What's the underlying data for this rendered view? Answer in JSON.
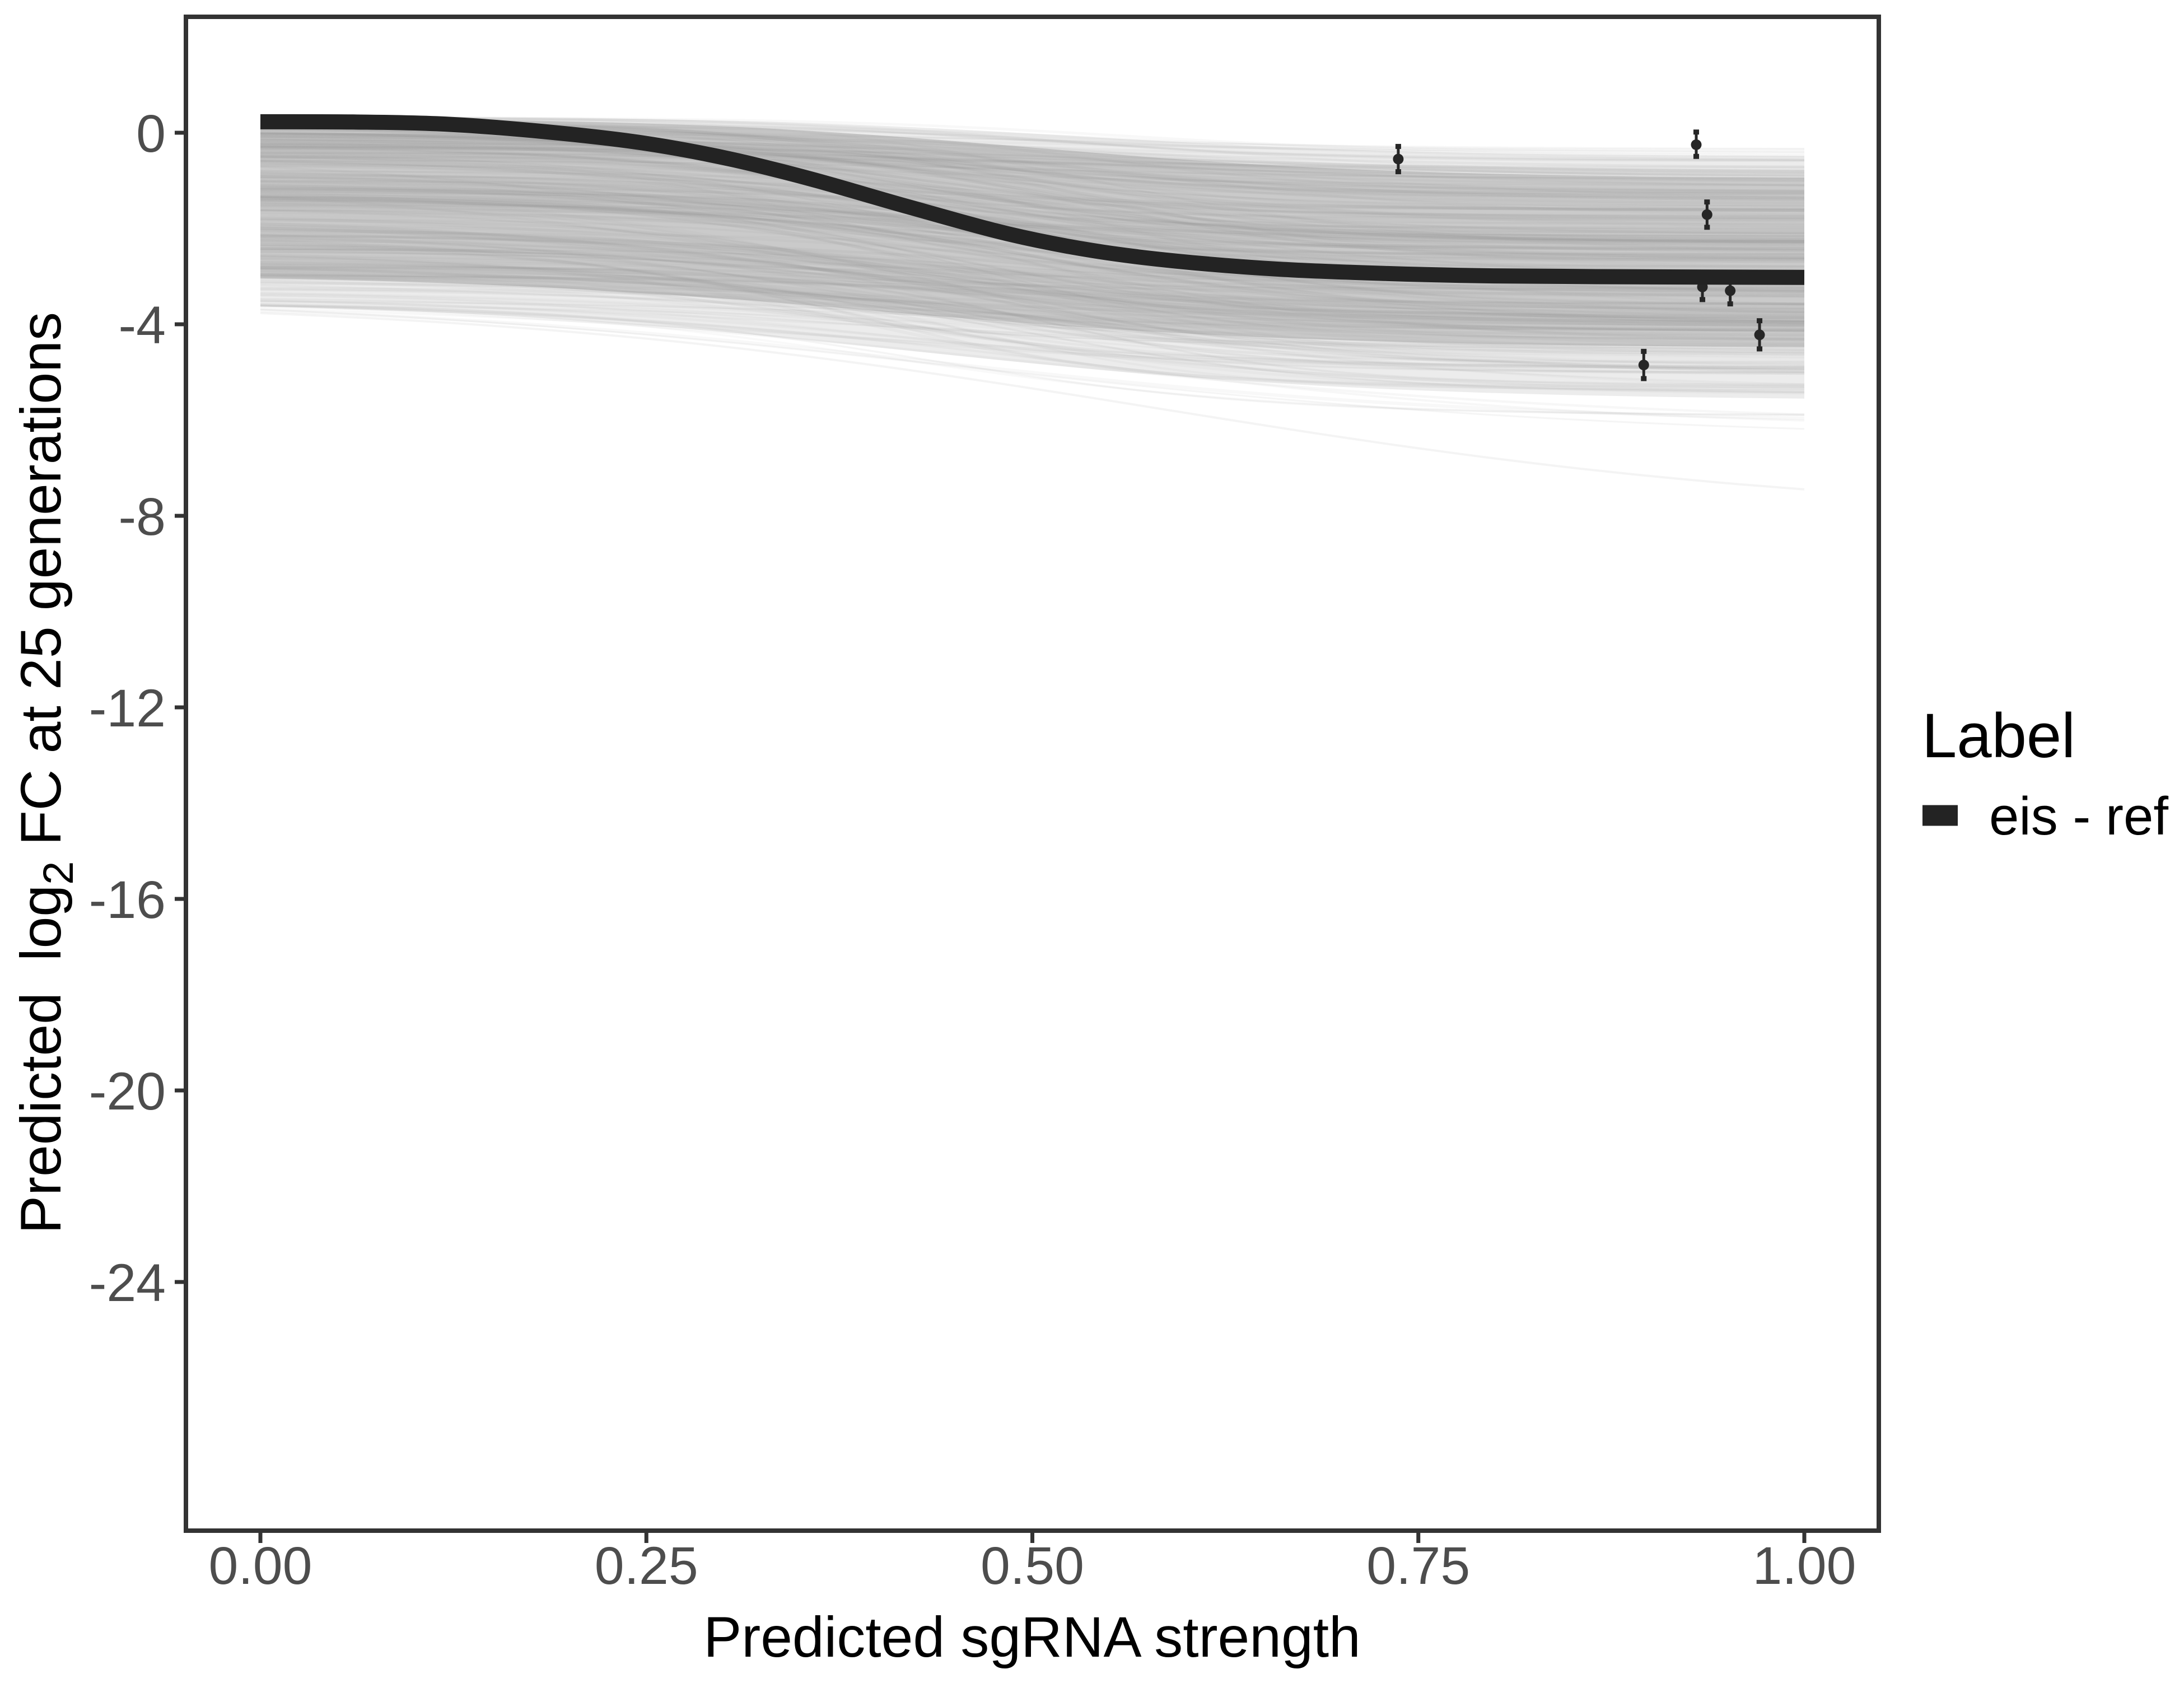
{
  "chart_data": {
    "type": "line",
    "title": "",
    "xlabel": "Predicted sgRNA strength",
    "ylabel": "Predicted log2 FC at 25 generations",
    "ylabel_parts": {
      "word1": "Predicted",
      "word2": "log",
      "sub": "2",
      "rest": "FC at 25 generations"
    },
    "xlim": [
      0,
      1
    ],
    "ylim_displayed": [
      2.4,
      -29.2
    ],
    "grid": false,
    "legend_position": "right",
    "xticks": [
      "0.00",
      "0.25",
      "0.50",
      "0.75",
      "1.00"
    ],
    "xtick_values": [
      0,
      0.25,
      0.5,
      0.75,
      1
    ],
    "yticks": [
      "0",
      "-4",
      "-8",
      "-12",
      "-16",
      "-20",
      "-24"
    ],
    "ytick_values": [
      0,
      -4,
      -8,
      -12,
      -16,
      -20,
      -24
    ],
    "legend": {
      "title": "Label",
      "entries": [
        {
          "label": "eis - ref",
          "type": "thick-line",
          "color": "#232323"
        }
      ]
    },
    "series": [
      {
        "name": "eis - ref",
        "type": "smooth-sigmoid-line",
        "color": "#232323",
        "stroke_width": 27,
        "points": [
          [
            0.0,
            0.23
          ],
          [
            0.06,
            0.225
          ],
          [
            0.12,
            0.18
          ],
          [
            0.185,
            0.02
          ],
          [
            0.247,
            -0.21
          ],
          [
            0.303,
            -0.54
          ],
          [
            0.357,
            -0.97
          ],
          [
            0.42,
            -1.55
          ],
          [
            0.484,
            -2.11
          ],
          [
            0.539,
            -2.46
          ],
          [
            0.593,
            -2.68
          ],
          [
            0.66,
            -2.85
          ],
          [
            0.73,
            -2.94
          ],
          [
            0.8,
            -2.99
          ],
          [
            0.9,
            -3.01
          ],
          [
            1.0,
            -3.02
          ]
        ]
      }
    ],
    "pointranges": [
      {
        "x": 0.737,
        "y": -0.55,
        "ymin": -0.82,
        "ymax": -0.28
      },
      {
        "x": 0.93,
        "y": -0.25,
        "ymin": -0.5,
        "ymax": 0.02
      },
      {
        "x": 0.937,
        "y": -1.71,
        "ymin": -1.98,
        "ymax": -1.44
      },
      {
        "x": 0.934,
        "y": -3.22,
        "ymin": -3.49,
        "ymax": -2.95
      },
      {
        "x": 0.952,
        "y": -3.3,
        "ymin": -3.58,
        "ymax": -3.02
      },
      {
        "x": 0.971,
        "y": -4.22,
        "ymin": -4.52,
        "ymax": -3.92
      },
      {
        "x": 0.896,
        "y": -4.85,
        "ymin": -5.14,
        "ymax": -4.56
      }
    ],
    "posterior_draws": {
      "description": "ensemble of semi-transparent gray sigmoid curves (posterior draws) forming a band from about +0.35..-3.7 at x=0 to about -0.3..-6.3 at x=1, with one outlier reaching -8",
      "seed": 7,
      "color": "#8f8f8f",
      "groups": [
        {
          "n": 230,
          "start": [
            0.33,
            -3.1
          ],
          "start_skew": 1.25,
          "drop": [
            0.6,
            3.0
          ],
          "x0": [
            0.32,
            0.56
          ],
          "k": [
            6,
            12
          ],
          "width": [
            3,
            6
          ],
          "opacity": [
            0.035,
            0.1
          ]
        },
        {
          "n": 30,
          "start": [
            0.3,
            -0.6
          ],
          "start_skew": 1.0,
          "drop": [
            0.2,
            1.2
          ],
          "x0": [
            0.45,
            0.62
          ],
          "k": [
            6,
            10
          ],
          "width": [
            3,
            5
          ],
          "opacity": [
            0.05,
            0.1
          ]
        },
        {
          "n": 25,
          "start": [
            -2.8,
            -3.6
          ],
          "start_skew": 1.0,
          "drop": [
            0.8,
            2.6
          ],
          "x0": [
            0.35,
            0.55
          ],
          "k": [
            5,
            9
          ],
          "width": [
            3,
            6
          ],
          "opacity": [
            0.04,
            0.09
          ]
        },
        {
          "n": 3,
          "start": [
            -3.2,
            -3.55
          ],
          "start_skew": 1.0,
          "drop": [
            2.6,
            3.4
          ],
          "x0": [
            0.45,
            0.6
          ],
          "k": [
            4.5,
            6
          ],
          "width": [
            3,
            5
          ],
          "opacity": [
            0.07,
            0.09
          ]
        },
        {
          "n": 1,
          "start": [
            -3.45,
            -3.45
          ],
          "start_skew": 1.0,
          "drop": [
            4.6,
            4.6
          ],
          "x0": [
            0.58,
            0.58
          ],
          "k": [
            4.5,
            4.5
          ],
          "width": [
            4,
            4
          ],
          "opacity": [
            0.1,
            0.1
          ]
        }
      ],
      "band_core": {
        "top": {
          "s": 0.33,
          "e": -0.95,
          "x0": 0.5,
          "k": 8.5
        },
        "bottom": {
          "s": -2.95,
          "e": -4.5,
          "x0": 0.4,
          "k": 7.0
        },
        "fill": "#bdbdbd",
        "opacity": 0.72
      },
      "band_outer": {
        "top": {
          "s": 0.35,
          "e": -0.5,
          "x0": 0.53,
          "k": 9.0
        },
        "bottom": {
          "s": -3.5,
          "e": -5.6,
          "x0": 0.42,
          "k": 6.5
        },
        "fill": "#d4d4d4",
        "opacity": 0.45
      }
    },
    "colors": {
      "accent": "#232323",
      "point": "#262626",
      "spaghetti": "#8f8f8f",
      "axis_text": "#4d4d4d",
      "axis_line": "#333333",
      "title_text": "#000000",
      "background": "#ffffff"
    }
  }
}
